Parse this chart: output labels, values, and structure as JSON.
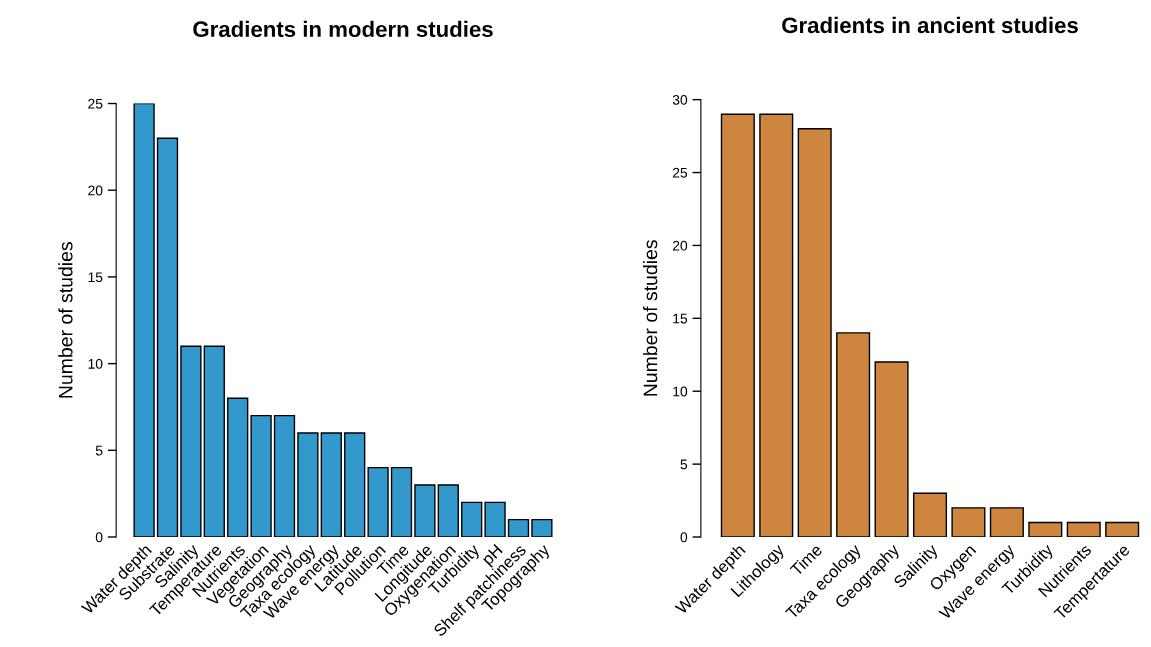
{
  "chart_data": [
    {
      "type": "bar",
      "title": "Gradients in modern studies",
      "ylabel": "Number of studies",
      "categories": [
        "Water depth",
        "Substrate",
        "Salinity",
        "Temperature",
        "Nutrients",
        "Vegetation",
        "Geography",
        "Taxa ecology",
        "Wave energy",
        "Latitude",
        "Pollution",
        "Time",
        "Longitude",
        "Oxygenation",
        "Turbidity",
        "pH",
        "Shelf patchiness",
        "Topography"
      ],
      "values": [
        25,
        23,
        11,
        11,
        8,
        7,
        7,
        6,
        6,
        6,
        4,
        4,
        3,
        3,
        2,
        2,
        1,
        1
      ],
      "color": "#3399cc",
      "ylim": [
        0,
        25
      ],
      "yticks": [
        0,
        5,
        10,
        15,
        20,
        25
      ],
      "grid": false
    },
    {
      "type": "bar",
      "title": "Gradients in ancient studies",
      "ylabel": "Number of studies",
      "categories": [
        "Water depth",
        "Lithology",
        "Time",
        "Taxa ecology",
        "Geography",
        "Salinity",
        "Oxygen",
        "Wave energy",
        "Turbidity",
        "Nutrients",
        "Tempertature"
      ],
      "values": [
        29,
        29,
        28,
        14,
        12,
        3,
        2,
        2,
        1,
        1,
        1
      ],
      "color": "#cd8540",
      "ylim": [
        0,
        30
      ],
      "yticks": [
        0,
        5,
        10,
        15,
        20,
        25,
        30
      ],
      "grid": false
    }
  ]
}
